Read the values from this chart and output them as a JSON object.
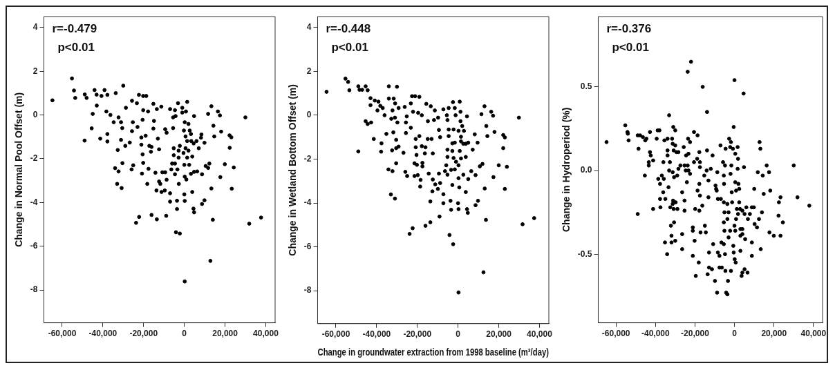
{
  "chart_data": [
    {
      "type": "scatter",
      "ylabel": "Change in Normal Pool Offset (m)",
      "annotations": [
        "r=-0.479",
        "p<0.01"
      ],
      "color": "#000000",
      "marker": "circle",
      "grid": false,
      "xlim": [
        -69000,
        44600
      ],
      "xticks": [
        {
          "value": -60000,
          "label": "-60,000"
        },
        {
          "value": -40000,
          "label": "-40,000"
        },
        {
          "value": -20000,
          "label": "-20,000"
        },
        {
          "value": 0,
          "label": "0"
        },
        {
          "value": 20000,
          "label": "20,000"
        },
        {
          "value": 40000,
          "label": "40,000"
        }
      ],
      "ylim": [
        -9.5,
        4.5
      ],
      "yticks": [
        -8,
        -6,
        -4,
        -2,
        0,
        2,
        4
      ],
      "x": [
        -64800,
        -55200,
        -54200,
        -53600,
        -48900,
        -48000,
        -44100,
        -43100,
        -39200,
        -37800,
        -33700,
        -30000,
        -40700,
        -45000,
        -43000,
        -45500,
        -49000,
        -41300,
        -37800,
        -37800,
        -36300,
        -38300,
        -34700,
        -32300,
        -31100,
        -30500,
        -32700,
        -34000,
        -32300,
        -30400,
        -33000,
        -30800,
        -31100,
        -29000,
        -26800,
        -25900,
        -25100,
        -23700,
        -22200,
        -28700,
        -25700,
        -23300,
        -22300,
        -20200,
        -18700,
        -25300,
        -23000,
        -25700,
        -20200,
        -17800,
        -20500,
        -19000,
        -21100,
        -21100,
        -17200,
        -16100,
        -16400,
        -20500,
        -20200,
        -20800,
        -17600,
        -18200,
        -16100,
        -13500,
        -15200,
        -13500,
        -11300,
        -14900,
        -15200,
        -13000,
        -12400,
        -14200,
        -12400,
        -11800,
        -13700,
        -11200,
        -9600,
        -10800,
        -9400,
        -8700,
        -9400,
        -8700,
        -8900,
        -7000,
        -5500,
        -5500,
        -4300,
        -3100,
        -4600,
        -5200,
        -5200,
        -6000,
        -6400,
        -4600,
        -4600,
        -3400,
        -2800,
        -2200,
        -2800,
        -7000,
        -7000,
        -3600,
        -3600,
        -2700,
        -4100,
        -2200,
        200,
        1400,
        -1000,
        -1000,
        800,
        200,
        2050,
        -200,
        600,
        2650,
        3250,
        1400,
        600,
        1400,
        0,
        -400,
        2050,
        3400,
        4600,
        6000,
        3900,
        2400,
        3250,
        4800,
        6300,
        200,
        1000,
        0,
        200,
        3900,
        4500,
        4800,
        4800,
        7100,
        8400,
        8200,
        9900,
        8700,
        8700,
        9900,
        10500,
        11700,
        12300,
        11700,
        13300,
        14300,
        14700,
        13300,
        14000,
        12800,
        16500,
        17500,
        18100,
        17700,
        19900,
        22200,
        23100,
        22300,
        23300,
        24300,
        30000,
        31900,
        37700
      ],
      "values": [
        0.67,
        1.67,
        1.12,
        0.78,
        0.94,
        0.78,
        1.14,
        0.93,
        1.14,
        0.92,
        1.0,
        1.34,
        0.87,
        0.05,
        0.43,
        -0.61,
        -1.17,
        -1.08,
        -0.87,
        -1.21,
        0.0,
        0.16,
        -0.33,
        -0.11,
        -0.33,
        -0.6,
        -1.6,
        -2.43,
        -2.58,
        -2.2,
        -3.15,
        -3.34,
        -1.14,
        -1.41,
        -1.26,
        -2.49,
        -2.3,
        -4.93,
        -4.66,
        0.33,
        0.65,
        0.54,
        0.92,
        0.87,
        0.87,
        -0.33,
        -0.55,
        -0.74,
        0.22,
        0.16,
        -0.22,
        -0.95,
        -1.03,
        -1.36,
        -1.41,
        -1.46,
        -1.68,
        -1.8,
        -2.19,
        -2.68,
        -2.46,
        -3.15,
        -4.57,
        -4.77,
        0.51,
        0.27,
        0.38,
        -0.27,
        -0.62,
        -1.08,
        -1.57,
        -2.64,
        -3.04,
        -3.15,
        -3.45,
        -3.52,
        -3.45,
        -2.62,
        -2.62,
        -0.81,
        -0.65,
        -2.96,
        -4.61,
        0.27,
        -0.11,
        -0.6,
        -0.05,
        0.54,
        0.22,
        -1.52,
        -1.84,
        -2.22,
        -2.49,
        -2.22,
        -2.71,
        -2.49,
        -1.95,
        -1.41,
        -1.63,
        -3.58,
        -3.96,
        -3.92,
        -4.3,
        -3.15,
        -5.36,
        -5.42,
        -7.61,
        0.6,
        0.33,
        0.11,
        0.16,
        -0.33,
        -0.41,
        -0.71,
        -0.98,
        -0.71,
        -0.87,
        -1.19,
        -1.52,
        -1.95,
        -2.28,
        -1.74,
        -1.63,
        -1.19,
        -1.3,
        -1.19,
        -1.9,
        -2.28,
        -2.69,
        -2.6,
        -2.58,
        -2.82,
        -2.95,
        -3.63,
        -3.93,
        -3.52,
        -4.28,
        -4.45,
        -0.05,
        -1.52,
        -0.89,
        -1.04,
        -1.27,
        -2.71,
        -4.07,
        -3.9,
        -2.33,
        -2.42,
        -2.22,
        0.05,
        0.4,
        -0.49,
        -0.98,
        -3.36,
        -4.79,
        -6.67,
        0.16,
        -0.02,
        -0.76,
        -2.84,
        -2.25,
        -0.93,
        -1.02,
        -1.5,
        -3.37,
        -2.4,
        -0.11,
        -4.97,
        -4.69
      ]
    },
    {
      "type": "scatter",
      "ylabel": "Change in Wetland Bottom Offset (m)",
      "xlabel": "Change in groundwater extraction from 1998 baseline (m³/day)",
      "annotations": [
        "r=-0.448",
        "p<0.01"
      ],
      "color": "#000000",
      "marker": "circle",
      "grid": false,
      "xlim": [
        -69000,
        44600
      ],
      "xticks": [
        {
          "value": -60000,
          "label": "-60,000"
        },
        {
          "value": -40000,
          "label": "-40,000"
        },
        {
          "value": -20000,
          "label": "-20,000"
        },
        {
          "value": 0,
          "label": "0"
        },
        {
          "value": 20000,
          "label": "20,000"
        },
        {
          "value": 40000,
          "label": "40,000"
        }
      ],
      "ylim": [
        -9.5,
        4.5
      ],
      "yticks": [
        -8,
        -6,
        -4,
        -2,
        0,
        2,
        4
      ],
      "x": [
        -64600,
        -55300,
        -54000,
        -53400,
        -49000,
        -48400,
        -45400,
        -44400,
        -47100,
        -43000,
        -43000,
        -40900,
        -39100,
        -39600,
        -38200,
        -37000,
        -36100,
        -34000,
        -30000,
        -31600,
        -34000,
        -32200,
        -30900,
        -29200,
        -32800,
        -31000,
        -29800,
        -45400,
        -44400,
        -42700,
        -49000,
        -41400,
        -37600,
        -37800,
        -35200,
        -31800,
        -30400,
        -30400,
        -29200,
        -32400,
        -34200,
        -32200,
        -30400,
        -33000,
        -31000,
        -26800,
        -25900,
        -25000,
        -23800,
        -22300,
        -26200,
        -25200,
        -25600,
        -23200,
        -22600,
        -21100,
        -19000,
        -22100,
        -19600,
        -17800,
        -23200,
        -25600,
        -19000,
        -20800,
        -20800,
        -17800,
        -16000,
        -16300,
        -20400,
        -21400,
        -20200,
        -17500,
        -17500,
        -21400,
        -19800,
        -18400,
        -18600,
        -16000,
        -13600,
        -15600,
        -13400,
        -11400,
        -14800,
        -11800,
        -14900,
        -13000,
        -12400,
        -14400,
        -12400,
        -11200,
        -12600,
        -9900,
        -8800,
        -9400,
        -13600,
        -9100,
        -9800,
        -9400,
        -8800,
        -7200,
        -4600,
        -5500,
        -5200,
        -4600,
        -4600,
        -2500,
        -1600,
        -1200,
        -2200,
        -5200,
        -5200,
        -5800,
        -6400,
        -5200,
        -3400,
        -2800,
        -2800,
        -1600,
        -2200,
        -1600,
        -7200,
        -7200,
        -3700,
        -3400,
        -2800,
        -4200,
        -2400,
        840,
        1200,
        1200,
        2040,
        240,
        1440,
        1440,
        2600,
        840,
        1440,
        240,
        -1000,
        2600,
        240,
        3800,
        5000,
        3800,
        4400,
        2900,
        0,
        240,
        600,
        3800,
        4400,
        4800,
        5000,
        6500,
        7200,
        8200,
        8600,
        8600,
        9600,
        9800,
        10700,
        12000,
        11500,
        13000,
        13900,
        14400,
        13100,
        13700,
        12500,
        240,
        16300,
        17200,
        17900,
        17400,
        20000,
        22200,
        23000,
        22200,
        23000,
        24000,
        29900,
        31700,
        37400
      ],
      "values": [
        1.07,
        1.67,
        1.52,
        1.14,
        1.32,
        1.16,
        1.32,
        1.14,
        1.16,
        0.78,
        0.46,
        0.67,
        0.62,
        0.22,
        0.43,
        0.33,
        0.0,
        1.32,
        1.3,
        0.76,
        0.76,
        0.22,
        0.54,
        0.33,
        -0.16,
        -0.11,
        -0.33,
        -0.27,
        -0.4,
        -0.33,
        -1.65,
        -1.08,
        -1.28,
        -1.66,
        -0.85,
        -0.78,
        -1.12,
        -1.5,
        -1.43,
        -1.6,
        -2.47,
        -2.55,
        -2.19,
        -3.61,
        -3.8,
        -1.71,
        -2.58,
        -2.77,
        -5.41,
        -5.15,
        0.38,
        -0.05,
        -0.33,
        0.54,
        0.87,
        0.87,
        0.84,
        0.16,
        0.11,
        0.0,
        -0.57,
        -0.81,
        -0.95,
        -1.08,
        -1.46,
        -1.41,
        -1.46,
        -1.74,
        -1.81,
        -2.19,
        -2.26,
        -2.17,
        -2.33,
        -2.77,
        -2.73,
        -2.95,
        -3.25,
        -5.04,
        -4.88,
        0.52,
        0.41,
        0.22,
        -0.27,
        -0.22,
        -1.08,
        -1.08,
        -1.74,
        -2.66,
        -2.93,
        -3.15,
        -3.47,
        -3.36,
        -3.09,
        -2.66,
        -3.93,
        -4.62,
        -0.11,
        -0.67,
        -1.0,
        0.27,
        0.33,
        0.0,
        -0.22,
        -0.65,
        -0.95,
        0.6,
        0.33,
        0.0,
        -0.65,
        -1.57,
        -1.9,
        -2.28,
        -2.55,
        -2.71,
        -2.49,
        -1.63,
        -1.28,
        -1.25,
        -1.95,
        -2.47,
        -3.6,
        -4.01,
        -3.9,
        -4.31,
        -3.18,
        -5.46,
        -5.88,
        0.62,
        0.16,
        -0.27,
        -0.49,
        -0.71,
        -0.98,
        -1.19,
        -1.3,
        -1.63,
        -1.97,
        -2.28,
        -2.12,
        -2.71,
        -2.87,
        -1.3,
        -1.25,
        -1.9,
        -0.05,
        -0.71,
        -4.01,
        -4.28,
        -3.29,
        -3.5,
        -4.28,
        -4.45,
        -2.91,
        -2.55,
        -1.57,
        -0.87,
        -2.73,
        -4.1,
        -1.25,
        -3.9,
        -2.33,
        -2.22,
        0.05,
        0.41,
        -0.49,
        -0.95,
        -3.34,
        -4.77,
        -7.16,
        -8.08,
        0.16,
        -0.02,
        -0.76,
        -2.82,
        -2.28,
        -0.9,
        -1.01,
        -1.5,
        -3.36,
        -2.35,
        -0.11,
        -4.97,
        -4.69
      ]
    },
    {
      "type": "scatter",
      "ylabel": "Change in Hydroperiod (%)",
      "annotations": [
        "r=-0.376",
        "p<0.01"
      ],
      "color": "#000000",
      "marker": "circle",
      "grid": false,
      "xlim": [
        -69000,
        44600
      ],
      "xticks": [
        {
          "value": -60000,
          "label": "-60,000"
        },
        {
          "value": -40000,
          "label": "-40,000"
        },
        {
          "value": -20000,
          "label": "-20,000"
        },
        {
          "value": 0,
          "label": "0"
        },
        {
          "value": 20000,
          "label": "20,000"
        },
        {
          "value": 40000,
          "label": "40,000"
        }
      ],
      "ylim": [
        -0.91,
        0.92
      ],
      "yticks": [
        {
          "value": -0.5,
          "label": "-0.5"
        },
        {
          "value": 0,
          "label": "0.0"
        },
        {
          "value": 0.5,
          "label": "0.5"
        }
      ],
      "x": [
        -64800,
        -55300,
        -54200,
        -54000,
        -53600,
        -49000,
        -47800,
        -48600,
        -49000,
        -46400,
        -45200,
        -44600,
        -45400,
        -42800,
        -42800,
        -42400,
        -43400,
        -43400,
        -41200,
        -41200,
        -39400,
        -38900,
        -38000,
        -38600,
        -37700,
        -36800,
        -35800,
        -36100,
        -37700,
        -37500,
        -36000,
        -35500,
        -33900,
        -33100,
        -33900,
        -33900,
        -32700,
        -33100,
        -31300,
        -35000,
        -35200,
        -34100,
        -33400,
        -32500,
        -31100,
        -31300,
        -29800,
        -28900,
        -30800,
        -31000,
        -30000,
        -31600,
        -31300,
        -30000,
        -30800,
        -29400,
        -28400,
        -30600,
        -29000,
        -32200,
        -30600,
        -31900,
        -31900,
        -30000,
        -28400,
        -27400,
        -26500,
        -26500,
        -25300,
        -25700,
        -24500,
        -24700,
        -23700,
        -23300,
        -22500,
        -24100,
        -26500,
        -25300,
        -25300,
        -23500,
        -22500,
        -23300,
        -23700,
        -22000,
        -20500,
        -18700,
        -20500,
        -18900,
        -17500,
        -17500,
        -17800,
        -19900,
        -18700,
        -17800,
        -17500,
        -17800,
        -21100,
        -21100,
        -20200,
        -21100,
        -19600,
        -18100,
        -17200,
        -16300,
        -16100,
        -15300,
        -15000,
        -14500,
        -13900,
        -13900,
        -14100,
        -13200,
        -13200,
        -12900,
        -12900,
        -13600,
        -12000,
        -11100,
        -10800,
        -11400,
        -9600,
        -9300,
        -9000,
        -9900,
        -8700,
        -8400,
        -8800,
        -8400,
        -7600,
        -7600,
        -7100,
        -6900,
        -6600,
        -6400,
        -5800,
        -5400,
        -5300,
        -4800,
        -5400,
        -5100,
        -5400,
        -5100,
        -5400,
        -4800,
        -4600,
        -4200,
        -3600,
        -3300,
        -4500,
        -3600,
        -3600,
        -3000,
        -3000,
        -2700,
        -1800,
        -2200,
        -2000,
        -1600,
        -1400,
        -1200,
        -1800,
        -2200,
        -400,
        0,
        -800,
        400,
        -600,
        -400,
        100,
        600,
        800,
        400,
        0,
        400,
        800,
        1600,
        1200,
        1600,
        1800,
        2000,
        2400,
        2400,
        2800,
        1800,
        3000,
        3000,
        3000,
        4000,
        4000,
        4000,
        4000,
        4600,
        4800,
        5100,
        5400,
        5100,
        6600,
        3600,
        6000,
        6800,
        7800,
        8800,
        9800,
        8800,
        8800,
        10000,
        10200,
        11400,
        11800,
        12400,
        12700,
        13100,
        13300,
        13900,
        14300,
        14800,
        16300,
        17500,
        18100,
        17700,
        19900,
        22300,
        22500,
        23300,
        23300,
        24500,
        30000,
        31900,
        37900
      ],
      "values": [
        0.17,
        0.27,
        0.23,
        0.22,
        0.18,
        0.21,
        0.21,
        0.13,
        -0.26,
        0.2,
        0.18,
        0.19,
        -0.03,
        0.23,
        0.11,
        0.09,
        0.05,
        0.03,
        0.06,
        -0.23,
        0.19,
        0.24,
        0.24,
        -0.05,
        -0.08,
        -0.03,
        -0.05,
        -0.13,
        -0.17,
        -0.22,
        0.05,
        0.18,
        0.19,
        0.33,
        0.12,
        0.09,
        0.05,
        0.0,
        -0.01,
        -0.17,
        -0.43,
        -0.5,
        -0.1,
        -0.22,
        -0.18,
        -0.2,
        -0.19,
        -0.23,
        -0.23,
        0.26,
        0.24,
        0.19,
        0.16,
        0.15,
        0.12,
        0.11,
        0.11,
        -0.04,
        -0.03,
        -0.33,
        -0.31,
        -0.39,
        -0.43,
        -0.42,
        0.01,
        0.03,
        -0.38,
        -0.47,
        0.03,
        0.14,
        0.09,
        0.0,
        0.03,
        0.0,
        -0.02,
        -0.07,
        -0.13,
        -0.18,
        -0.24,
        0.19,
        0.17,
        0.1,
        0.59,
        0.65,
        0.23,
        0.21,
        0.05,
        0.07,
        0.05,
        0.02,
        0.11,
        -0.23,
        -0.12,
        -0.08,
        -0.15,
        -0.24,
        -0.34,
        -0.36,
        -0.42,
        -0.51,
        -0.63,
        -0.55,
        -0.37,
        -0.21,
        0.5,
        -0.03,
        -0.33,
        -0.37,
        0.12,
        0.35,
        0.0,
        -0.06,
        -0.16,
        -0.49,
        -0.58,
        -0.62,
        0.01,
        0.09,
        -0.44,
        -0.59,
        -0.09,
        -0.11,
        -0.12,
        -0.66,
        -0.01,
        -0.17,
        -0.73,
        -0.49,
        -0.51,
        -0.58,
        0.15,
        -0.17,
        -0.43,
        -0.58,
        0.05,
        -0.03,
        -0.08,
        0.03,
        -0.19,
        -0.25,
        -0.31,
        -0.36,
        -0.44,
        -0.5,
        -0.6,
        -0.73,
        -0.74,
        -0.66,
        0.13,
        -0.2,
        -0.29,
        -0.25,
        -0.4,
        0.19,
        0.17,
        0.14,
        -0.02,
        0.03,
        -0.13,
        -0.19,
        -0.6,
        -0.36,
        0.26,
        0.54,
        0.13,
        0.1,
        -0.45,
        -0.49,
        -0.53,
        -0.55,
        -0.29,
        -0.36,
        -0.33,
        -0.07,
        -0.12,
        0.14,
        -0.23,
        0.01,
        0.07,
        -0.08,
        -0.11,
        -0.19,
        -0.23,
        -0.26,
        -0.39,
        -0.48,
        -0.35,
        -0.24,
        -0.61,
        -0.35,
        -0.38,
        0.46,
        0.02,
        -0.26,
        -0.41,
        -0.59,
        -0.61,
        -0.63,
        -0.22,
        -0.29,
        -0.26,
        -0.22,
        -0.22,
        -0.43,
        -0.51,
        -0.11,
        -0.32,
        -0.34,
        -0.01,
        -0.29,
        0.17,
        0.13,
        -0.47,
        -0.25,
        -0.03,
        -0.14,
        0.03,
        -0.01,
        -0.12,
        -0.37,
        -0.39,
        -0.27,
        -0.19,
        -0.16,
        -0.39,
        -0.31,
        0.03,
        -0.16,
        -0.21
      ]
    }
  ]
}
